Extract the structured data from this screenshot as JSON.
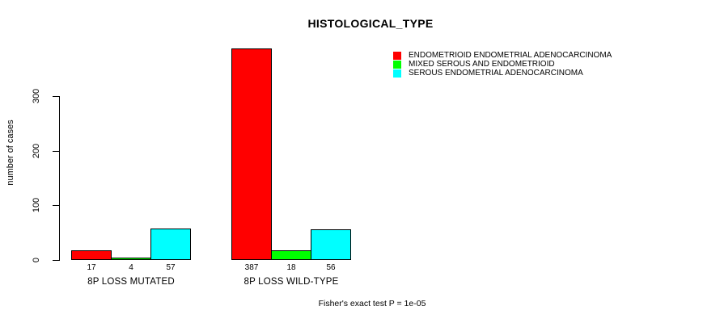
{
  "chart_data": {
    "type": "bar",
    "title": "HISTOLOGICAL_TYPE",
    "xlabel": "",
    "ylabel": "number of cases",
    "y_ticks": [
      0,
      100,
      200,
      300
    ],
    "ylim": [
      0,
      300
    ],
    "grid": false,
    "legend_position": "top-right",
    "categories": [
      "8P LOSS MUTATED",
      "8P LOSS WILD-TYPE"
    ],
    "series": [
      {
        "name": "ENDOMETRIOID ENDOMETRIAL ADENOCARCINOMA",
        "color": "#FF0000",
        "values": [
          17,
          387
        ]
      },
      {
        "name": "MIXED SEROUS AND ENDOMETRIOID",
        "color": "#00FF00",
        "values": [
          4,
          18
        ]
      },
      {
        "name": "SEROUS ENDOMETRIAL ADENOCARCINOMA",
        "color": "#00FFFF",
        "values": [
          57,
          56
        ]
      }
    ],
    "annotation": "Fisher's exact test P = 1e-05"
  }
}
